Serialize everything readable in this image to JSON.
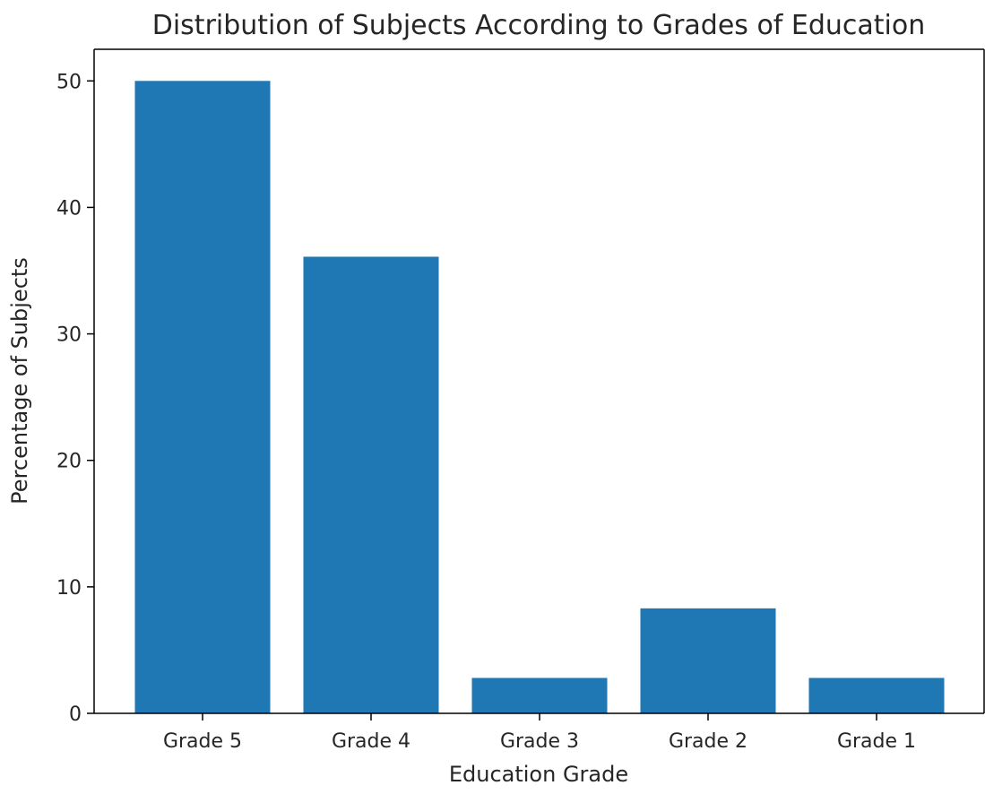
{
  "chart_data": {
    "type": "bar",
    "title": "Distribution of Subjects According to Grades of Education",
    "xlabel": "Education Grade",
    "ylabel": "Percentage of Subjects",
    "categories": [
      "Grade 5",
      "Grade 4",
      "Grade 3",
      "Grade 2",
      "Grade 1"
    ],
    "values": [
      50.0,
      36.1,
      2.8,
      8.3,
      2.8
    ],
    "ylim": [
      0,
      52.5
    ],
    "yticks": [
      "0",
      "10",
      "20",
      "30",
      "40",
      "50"
    ],
    "grid": false,
    "bar_color": "#1f77b4"
  }
}
